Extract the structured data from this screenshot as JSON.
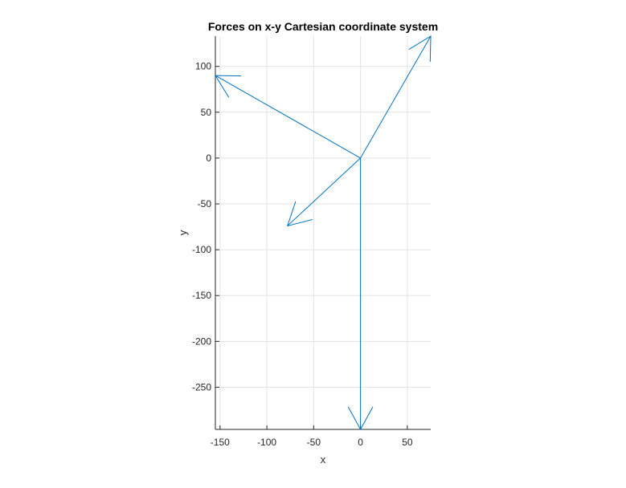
{
  "chart_data": {
    "type": "quiver",
    "title": "Forces on x-y Cartesian coordinate system",
    "xlabel": "x",
    "ylabel": "y",
    "xlim": [
      -155,
      75
    ],
    "ylim": [
      -296,
      133
    ],
    "xticks": [
      -150,
      -100,
      -50,
      0,
      50
    ],
    "yticks": [
      100,
      50,
      0,
      -50,
      -100,
      -150,
      -200,
      -250
    ],
    "grid": true,
    "origin": [
      0,
      0
    ],
    "vectors": [
      {
        "x": 75,
        "y": 133
      },
      {
        "x": -155,
        "y": 90
      },
      {
        "x": -78,
        "y": -74
      },
      {
        "x": 0,
        "y": -296
      }
    ],
    "colors": {
      "vector": "#0072bd",
      "grid": "#e3e3e3",
      "axis": "#262626"
    }
  }
}
